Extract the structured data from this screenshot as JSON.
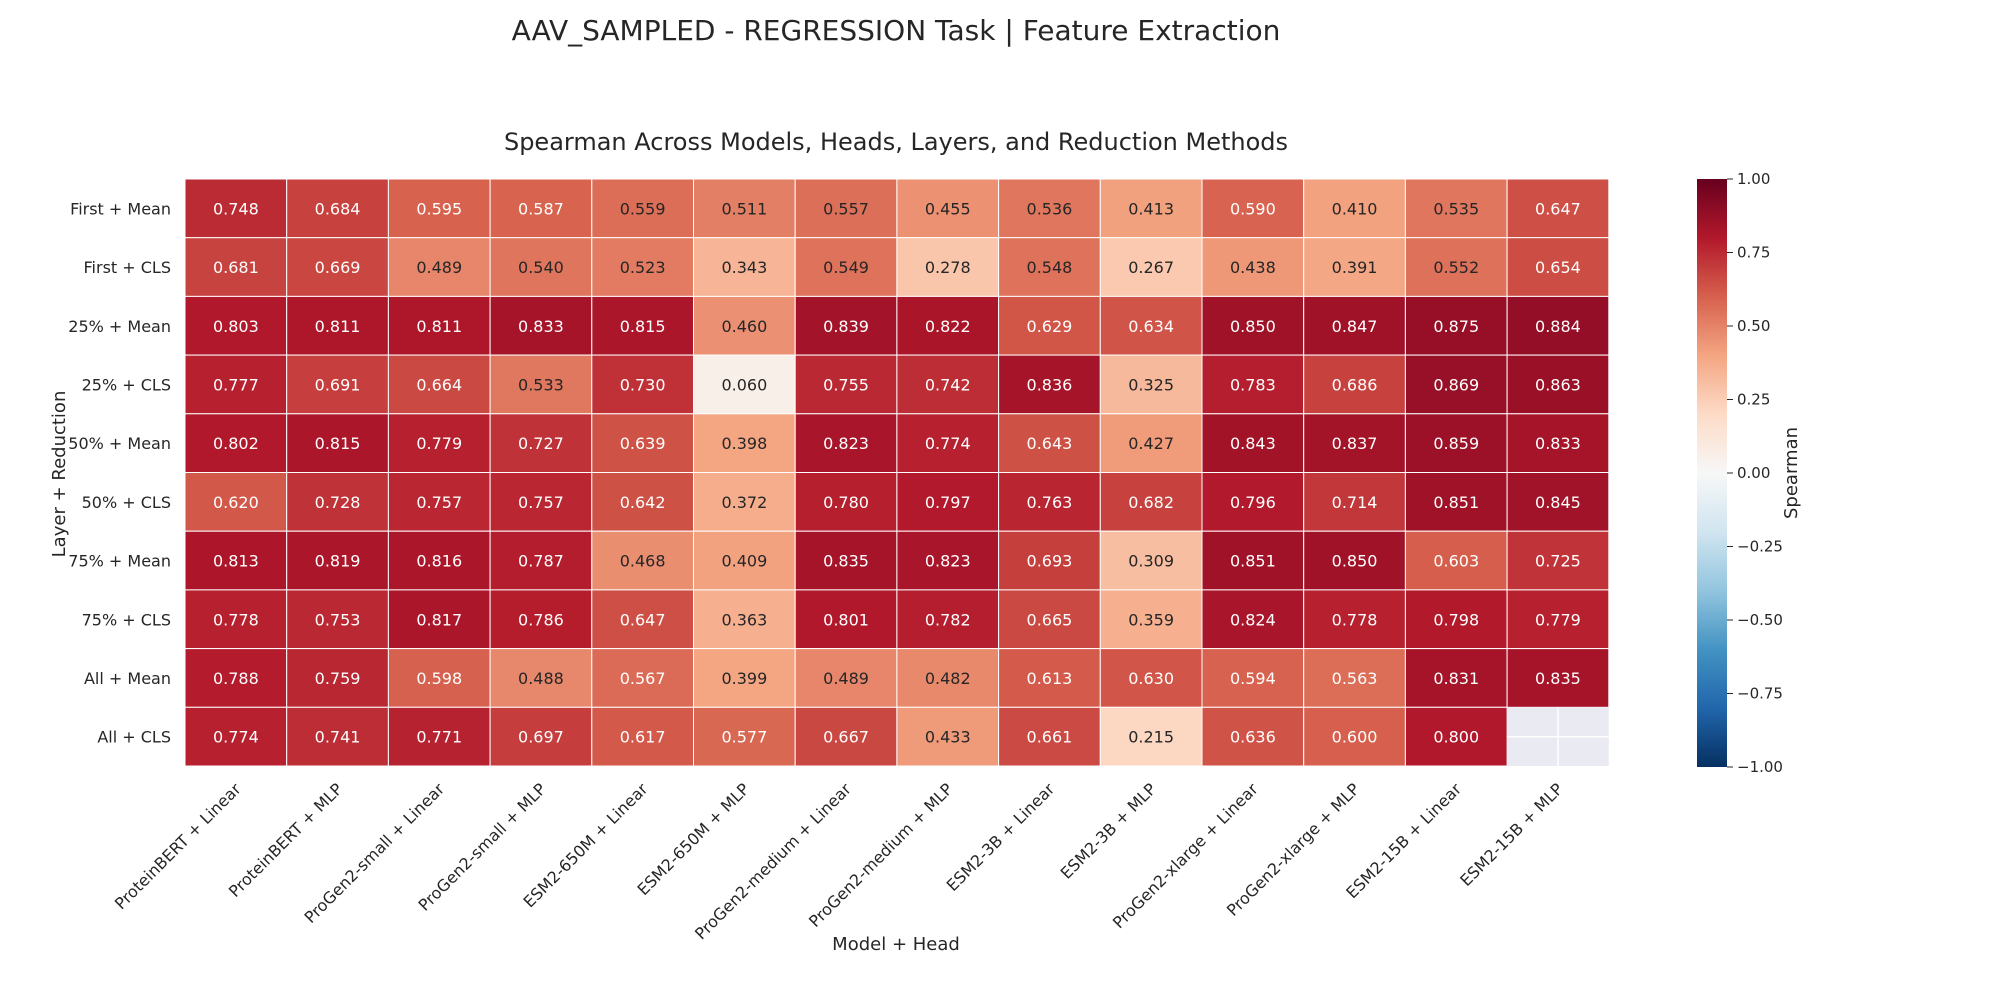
{
  "suptitle": "AAV_SAMPLED - REGRESSION Task | Feature Extraction",
  "chart_data": {
    "type": "heatmap",
    "title": "Spearman Across Models, Heads, Layers, and Reduction Methods",
    "xlabel": "Model + Head",
    "ylabel": "Layer + Reduction",
    "colorbar_label": "Spearman",
    "colormap": "RdBu_r",
    "vmin": -1.0,
    "vmax": 1.0,
    "colorbar_ticks": [
      "1.00",
      "0.75",
      "0.50",
      "0.25",
      "0.00",
      "−0.25",
      "−0.50",
      "−0.75",
      "−1.00"
    ],
    "colorbar_tick_values": [
      1.0,
      0.75,
      0.5,
      0.25,
      0.0,
      -0.25,
      -0.5,
      -0.75,
      -1.0
    ],
    "columns": [
      "ProteinBERT + Linear",
      "ProteinBERT + MLP",
      "ProGen2-small + Linear",
      "ProGen2-small + MLP",
      "ESM2-650M + Linear",
      "ESM2-650M + MLP",
      "ProGen2-medium + Linear",
      "ProGen2-medium + MLP",
      "ESM2-3B + Linear",
      "ESM2-3B + MLP",
      "ProGen2-xlarge + Linear",
      "ProGen2-xlarge + MLP",
      "ESM2-15B + Linear",
      "ESM2-15B + MLP"
    ],
    "rows": [
      "First + Mean",
      "First + CLS",
      "25% + Mean",
      "25% + CLS",
      "50% + Mean",
      "50% + CLS",
      "75% + Mean",
      "75% + CLS",
      "All + Mean",
      "All + CLS"
    ],
    "values": [
      [
        "0.748",
        "0.684",
        "0.595",
        "0.587",
        "0.559",
        "0.511",
        "0.557",
        "0.455",
        "0.536",
        "0.413",
        "0.590",
        "0.410",
        "0.535",
        "0.647"
      ],
      [
        "0.681",
        "0.669",
        "0.489",
        "0.540",
        "0.523",
        "0.343",
        "0.549",
        "0.278",
        "0.548",
        "0.267",
        "0.438",
        "0.391",
        "0.552",
        "0.654"
      ],
      [
        "0.803",
        "0.811",
        "0.811",
        "0.833",
        "0.815",
        "0.460",
        "0.839",
        "0.822",
        "0.629",
        "0.634",
        "0.850",
        "0.847",
        "0.875",
        "0.884"
      ],
      [
        "0.777",
        "0.691",
        "0.664",
        "0.533",
        "0.730",
        "0.060",
        "0.755",
        "0.742",
        "0.836",
        "0.325",
        "0.783",
        "0.686",
        "0.869",
        "0.863"
      ],
      [
        "0.802",
        "0.815",
        "0.779",
        "0.727",
        "0.639",
        "0.398",
        "0.823",
        "0.774",
        "0.643",
        "0.427",
        "0.843",
        "0.837",
        "0.859",
        "0.833"
      ],
      [
        "0.620",
        "0.728",
        "0.757",
        "0.757",
        "0.642",
        "0.372",
        "0.780",
        "0.797",
        "0.763",
        "0.682",
        "0.796",
        "0.714",
        "0.851",
        "0.845"
      ],
      [
        "0.813",
        "0.819",
        "0.816",
        "0.787",
        "0.468",
        "0.409",
        "0.835",
        "0.823",
        "0.693",
        "0.309",
        "0.851",
        "0.850",
        "0.603",
        "0.725"
      ],
      [
        "0.778",
        "0.753",
        "0.817",
        "0.786",
        "0.647",
        "0.363",
        "0.801",
        "0.782",
        "0.665",
        "0.359",
        "0.824",
        "0.778",
        "0.798",
        "0.779"
      ],
      [
        "0.788",
        "0.759",
        "0.598",
        "0.488",
        "0.567",
        "0.399",
        "0.489",
        "0.482",
        "0.613",
        "0.630",
        "0.594",
        "0.563",
        "0.831",
        "0.835"
      ],
      [
        "0.774",
        "0.741",
        "0.771",
        "0.697",
        "0.617",
        "0.577",
        "0.667",
        "0.433",
        "0.661",
        "0.215",
        "0.636",
        "0.600",
        "0.800",
        null
      ]
    ]
  }
}
